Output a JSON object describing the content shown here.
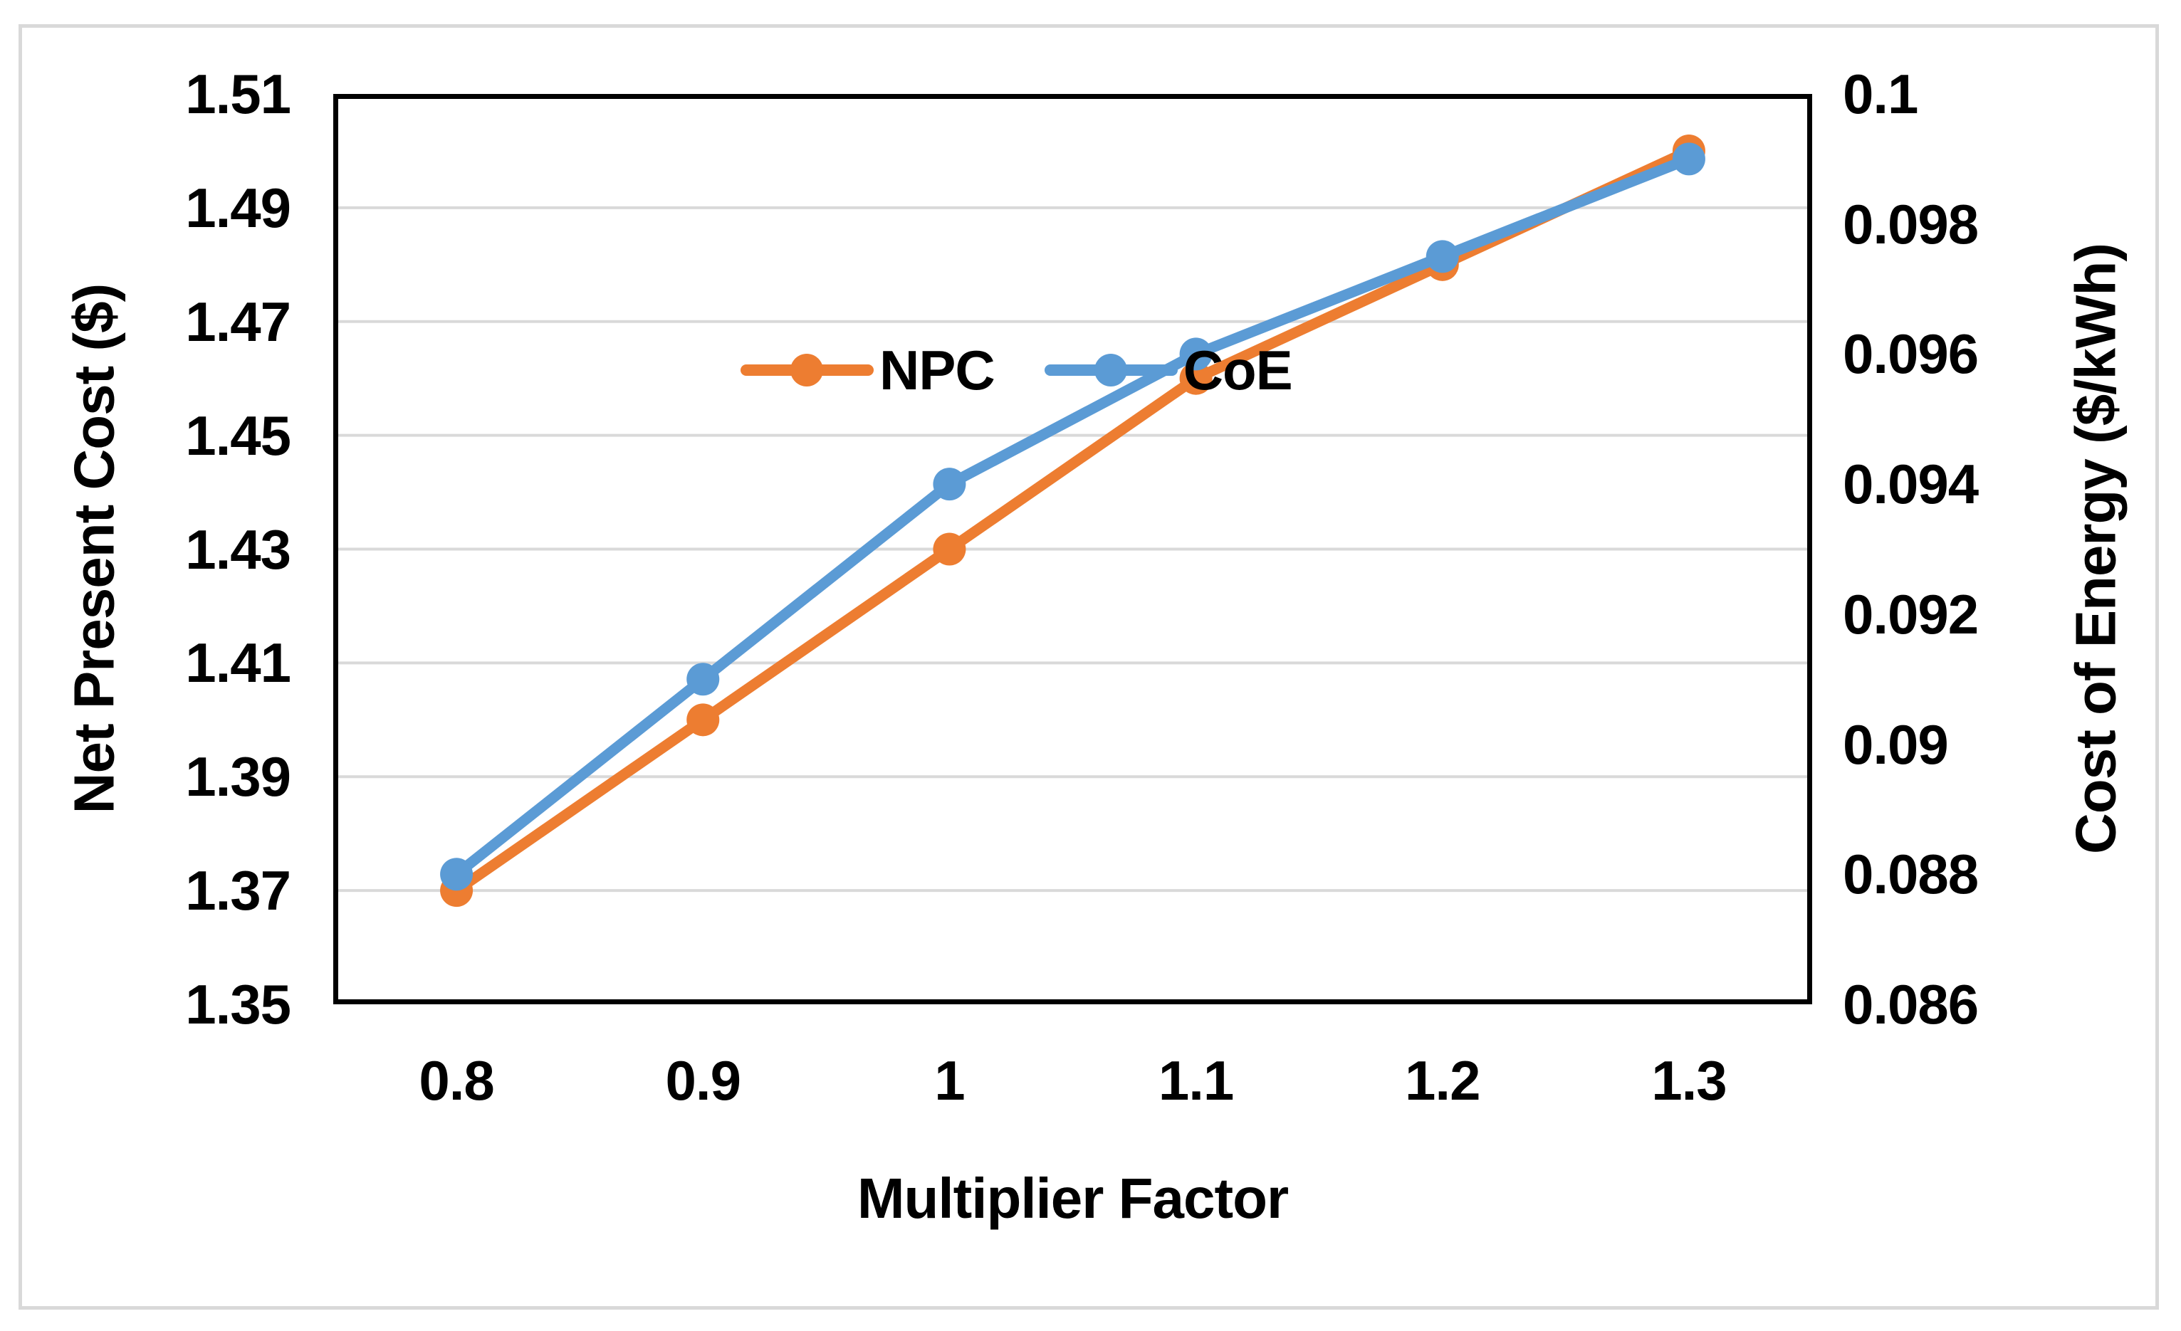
{
  "chart_data": {
    "type": "line",
    "x": [
      0.8,
      0.9,
      1,
      1.1,
      1.2,
      1.3
    ],
    "series": [
      {
        "name": "NPC",
        "axis": "left",
        "color": "#ED7D31",
        "marker": "circle",
        "values": [
          1.37,
          1.4,
          1.43,
          1.46,
          1.48,
          1.5
        ]
      },
      {
        "name": "CoE",
        "axis": "right",
        "color": "#5B9BD5",
        "marker": "circle",
        "values": [
          0.088,
          0.091,
          0.094,
          0.096,
          0.0975,
          0.099
        ]
      }
    ],
    "x_axis": {
      "label": "Multiplier Factor",
      "min": 0.75,
      "max": 1.35,
      "ticks": [
        0.8,
        0.9,
        1,
        1.1,
        1.2,
        1.3
      ],
      "tick_labels": [
        "0.8",
        "0.9",
        "1",
        "1.1",
        "1.2",
        "1.3"
      ]
    },
    "left_axis": {
      "label": "Net Present Cost ($)",
      "min": 1.35,
      "max": 1.51,
      "ticks": [
        1.51,
        1.49,
        1.47,
        1.45,
        1.43,
        1.41,
        1.39,
        1.37,
        1.35
      ],
      "tick_labels": [
        "1.51",
        "1.49",
        "1.47",
        "1.45",
        "1.43",
        "1.41",
        "1.39",
        "1.37",
        "1.35"
      ]
    },
    "right_axis": {
      "label": "Cost of Energy ($/kWh)",
      "min": 0.086,
      "max": 0.1,
      "ticks": [
        0.1,
        0.098,
        0.096,
        0.094,
        0.092,
        0.09,
        0.088,
        0.086
      ],
      "tick_labels": [
        "0.1",
        "0.098",
        "0.096",
        "0.094",
        "0.092",
        "0.09",
        "0.088",
        "0.086"
      ]
    },
    "legend": {
      "position": "inside-top-left",
      "entries": [
        "NPC",
        "CoE"
      ]
    },
    "grid": true,
    "colors": {
      "gridline": "#D9D9D9",
      "plot_border": "#000000",
      "frame_border": "#D9D9D9",
      "text": "#000000",
      "background": "#FFFFFF",
      "npc": "#ED7D31",
      "coe": "#5B9BD5"
    }
  }
}
